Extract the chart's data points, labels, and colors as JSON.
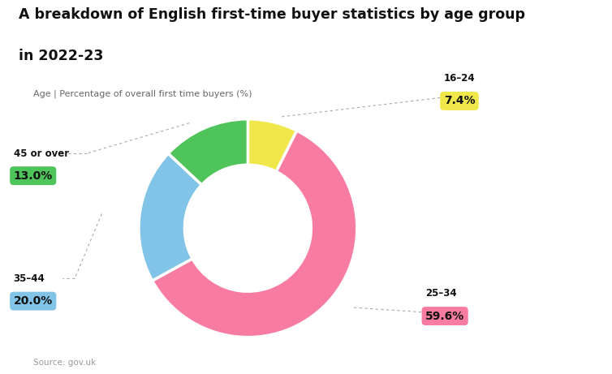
{
  "title_line1": "A breakdown of English first-time buyer statistics by age group",
  "title_line2": "in 2022-23",
  "subtitle": "Age | Percentage of overall first time buyers (%)",
  "source": "Source: gov.uk",
  "labels": [
    "16–24",
    "25–34",
    "35–44",
    "45 or over"
  ],
  "values": [
    7.4,
    59.6,
    20.0,
    13.0
  ],
  "colors": [
    "#f0e84a",
    "#f87ca1",
    "#82c4e8",
    "#4fc45a"
  ],
  "background_color": "#ffffff",
  "donut_width": 0.42
}
